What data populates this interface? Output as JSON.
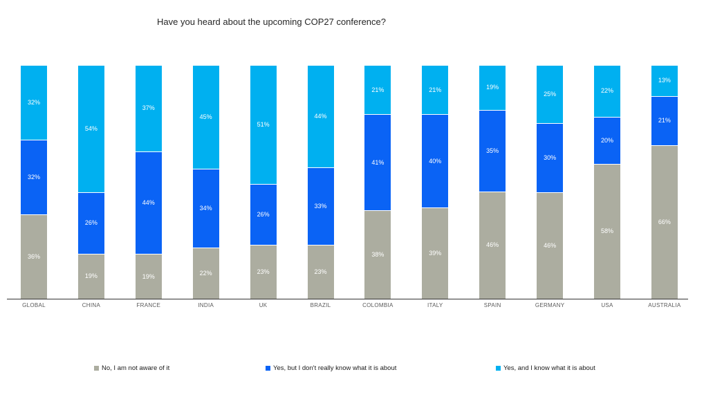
{
  "title": "Have you heard about the upcoming COP27 conference?",
  "chart_data": {
    "type": "bar",
    "stacked": true,
    "percent_stacked": true,
    "title": "Have you heard about the upcoming COP27 conference?",
    "xlabel": "",
    "ylabel": "",
    "ylim": [
      0,
      100
    ],
    "grid": false,
    "legend_position": "bottom",
    "value_suffix": "%",
    "categories": [
      "GLOBAL",
      "CHINA",
      "FRANCE",
      "INDIA",
      "UK",
      "BRAZIL",
      "COLOMBIA",
      "ITALY",
      "SPAIN",
      "GERMANY",
      "USA",
      "AUSTRALIA"
    ],
    "series": [
      {
        "name": "No, I am not aware of it",
        "color": "#ACADA0",
        "values": [
          36,
          19,
          19,
          22,
          23,
          23,
          38,
          39,
          46,
          46,
          58,
          66
        ]
      },
      {
        "name": "Yes, but I don't really know what it is about",
        "color": "#0A63F5",
        "values": [
          32,
          26,
          44,
          34,
          26,
          33,
          41,
          40,
          35,
          30,
          20,
          21
        ]
      },
      {
        "name": "Yes, and I know what it is about",
        "color": "#00B0F0",
        "values": [
          32,
          54,
          37,
          45,
          51,
          44,
          21,
          21,
          19,
          25,
          22,
          13
        ]
      }
    ],
    "axis_line_color": "#333333",
    "label_text_color": "#ffffff"
  }
}
